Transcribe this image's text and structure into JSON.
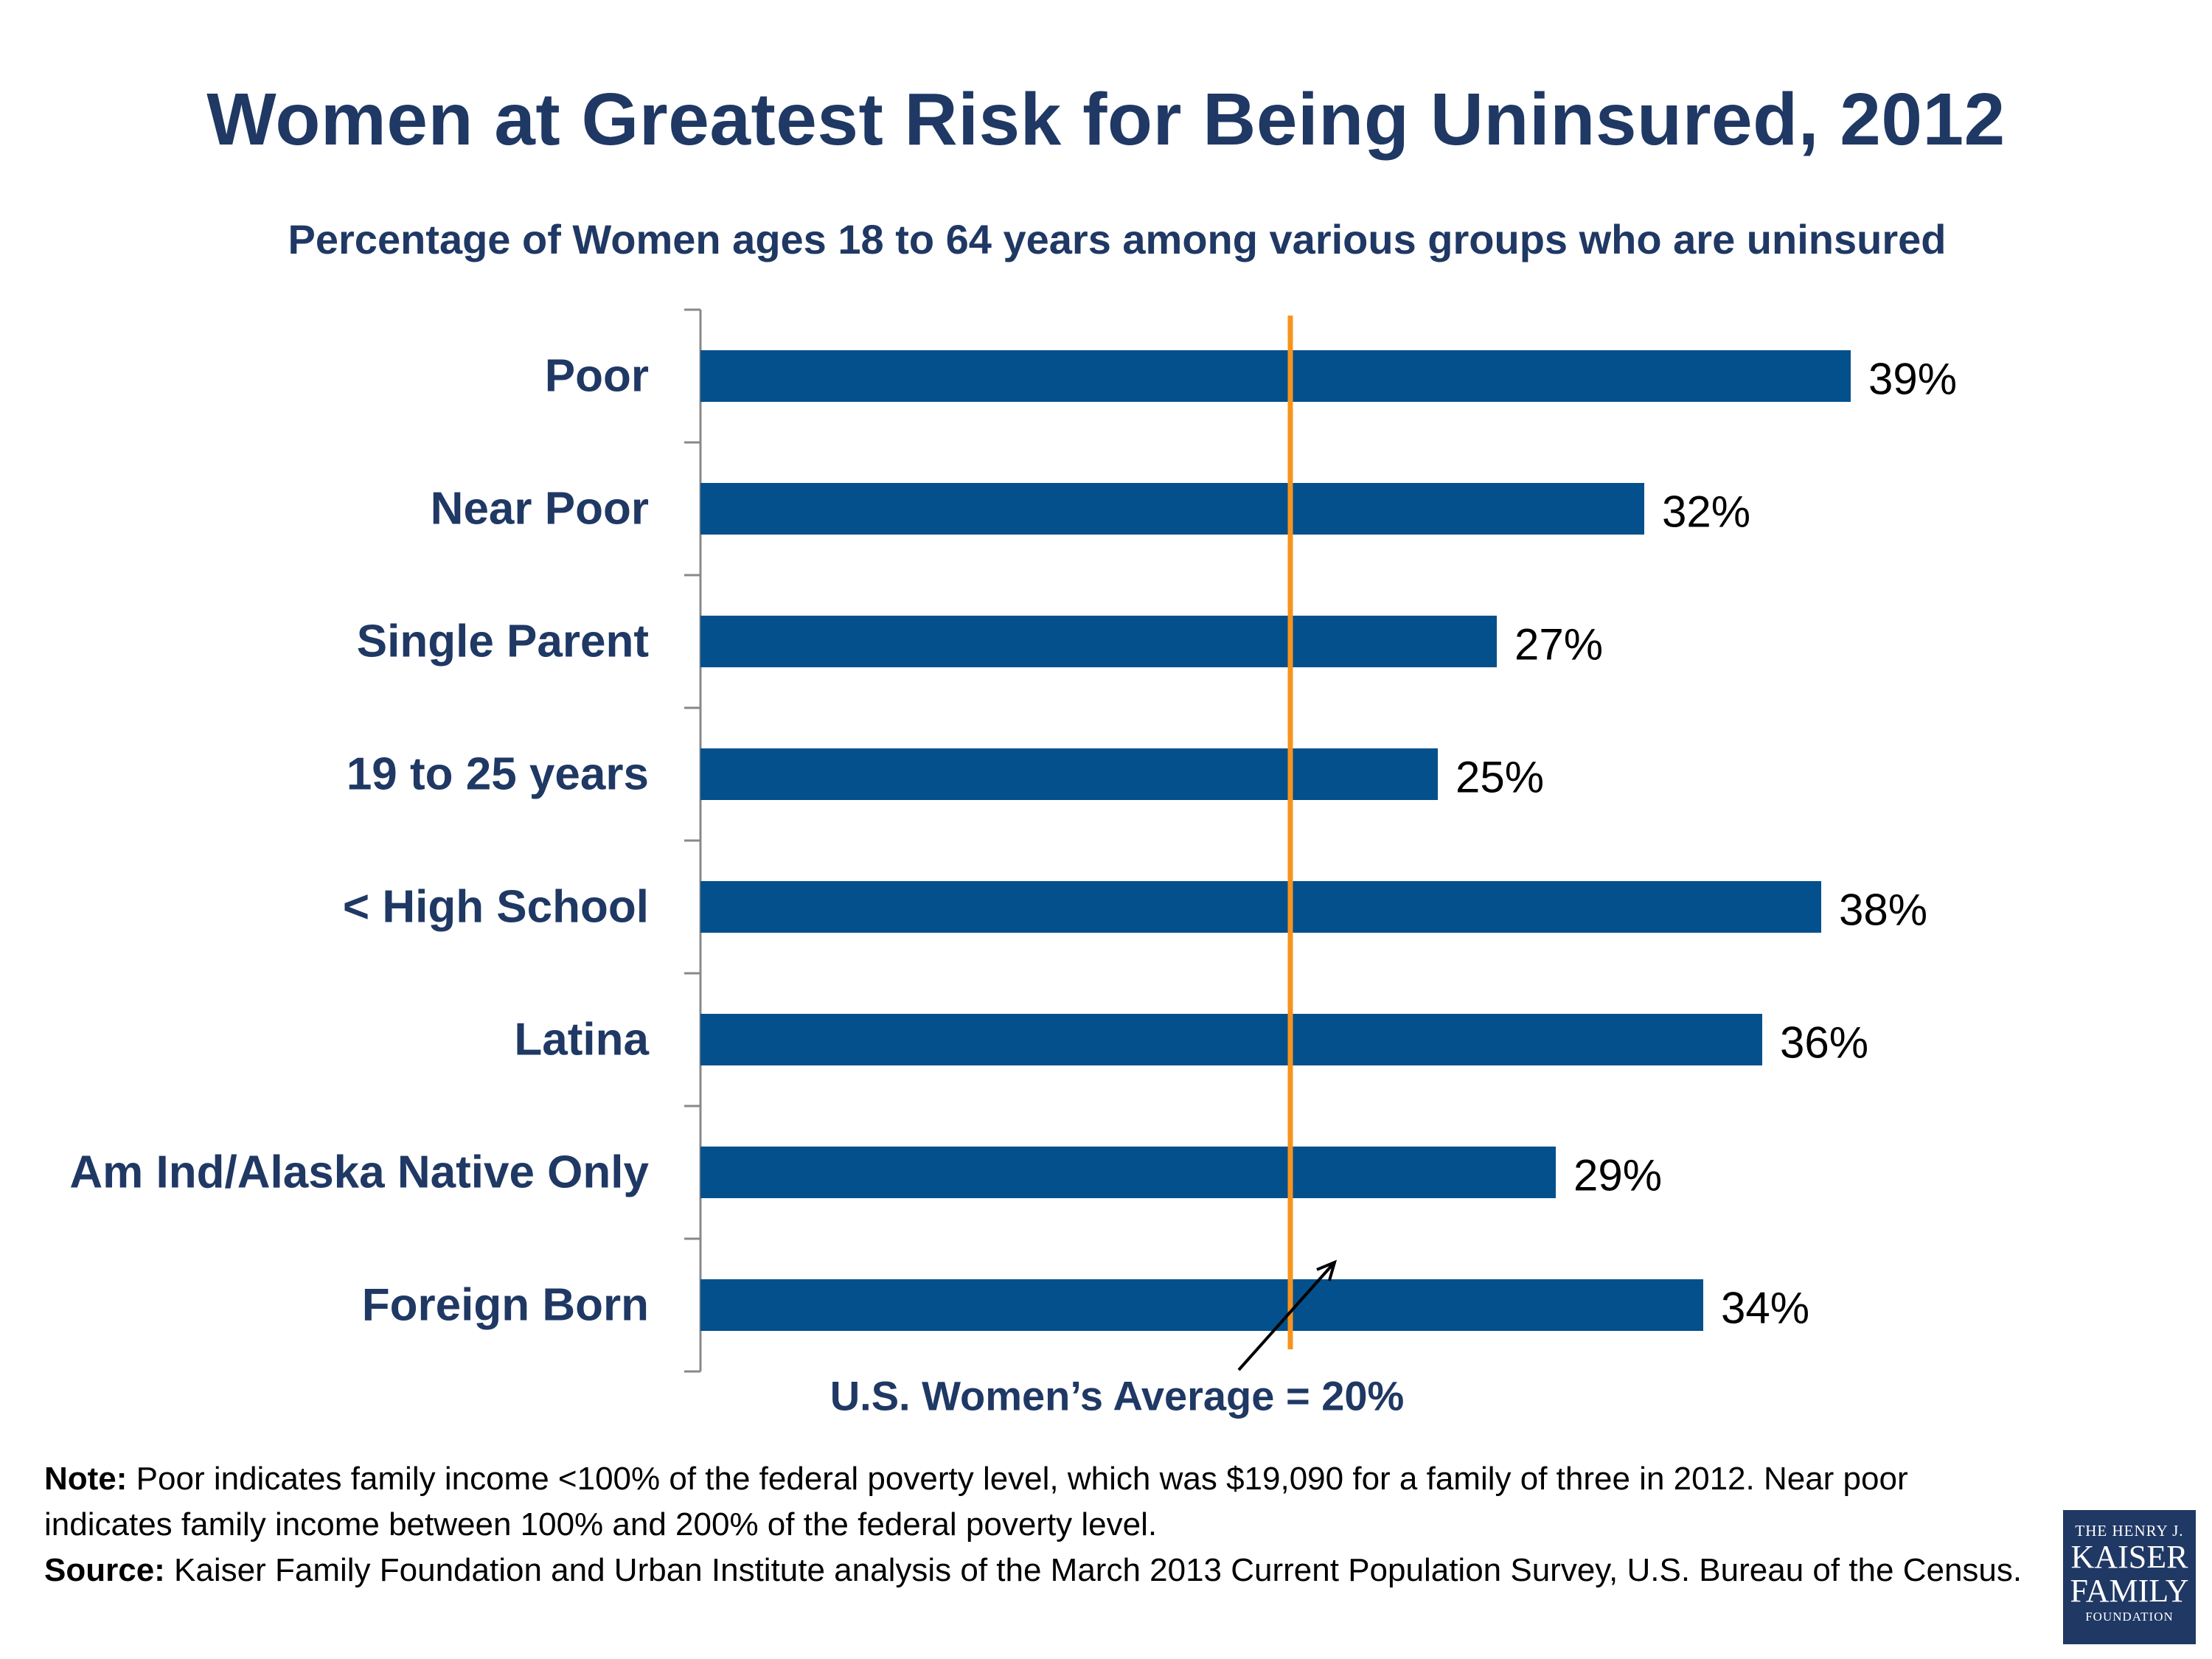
{
  "chart_data": {
    "type": "bar",
    "orientation": "horizontal",
    "title": "Women at Greatest Risk for Being Uninsured, 2012",
    "subtitle": "Percentage of Women ages 18 to 64 years among various groups who are uninsured",
    "categories": [
      "Poor",
      "Near Poor",
      "Single Parent",
      "19 to 25 years",
      "< High School",
      "Latina",
      "Am Ind/Alaska Native Only",
      "Foreign Born"
    ],
    "values": [
      39,
      32,
      27,
      25,
      38,
      36,
      29,
      34
    ],
    "value_labels": [
      "39%",
      "32%",
      "27%",
      "25%",
      "38%",
      "36%",
      "29%",
      "34%"
    ],
    "xlim": [
      0,
      40
    ],
    "grid": false,
    "reference_line": {
      "value": 20,
      "label": "U.S. Women’s Average  = 20%",
      "color": "#f7941d"
    }
  },
  "colors": {
    "bar": "#03508c",
    "title": "#1f3864",
    "average_line": "#f7941d",
    "axis": "#888888"
  },
  "notes": {
    "note_label": "Note:",
    "note_text": " Poor indicates family income <100% of the federal poverty level, which was $19,090 for a family of three in 2012. Near poor indicates family income between 100% and 200% of the federal poverty level.",
    "source_label": "Source:",
    "source_text": " Kaiser Family Foundation and Urban Institute analysis of the March 2013 Current Population Survey, U.S. Bureau of the Census."
  },
  "logo": {
    "line1": "THE HENRY J.",
    "line2": "KAISER",
    "line3": "FAMILY",
    "line4": "FOUNDATION"
  }
}
